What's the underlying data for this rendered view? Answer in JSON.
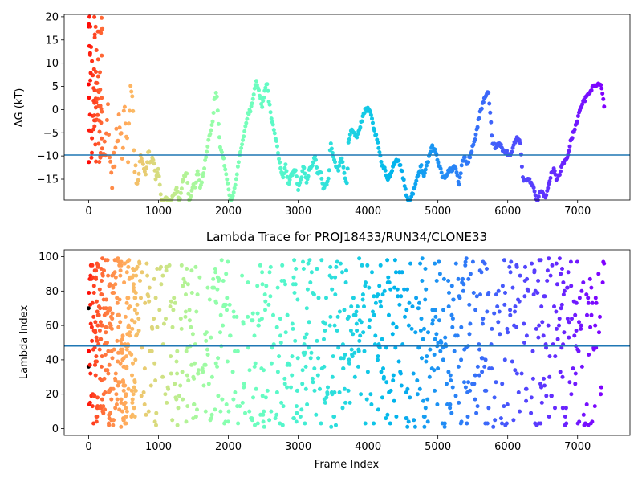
{
  "chart_data": [
    {
      "type": "scatter",
      "title": "",
      "xlabel": "",
      "ylabel": "ΔG (kT)",
      "xlim": [
        -350,
        7750
      ],
      "ylim": [
        -19.5,
        20.5
      ],
      "xticks": [
        0,
        1000,
        2000,
        3000,
        4000,
        5000,
        6000,
        7000
      ],
      "yticks": [
        -15,
        -10,
        -5,
        0,
        5,
        10,
        15,
        20
      ],
      "hline": -9.8,
      "hline_color": "#1f77b4",
      "colormap": "rainbow, reversed by frame index",
      "marker_size": 2.5,
      "series": [
        {
          "values_by_frame": [
            [
              0,
              20
            ],
            [
              20,
              17
            ],
            [
              40,
              10
            ],
            [
              60,
              5
            ],
            [
              80,
              0
            ],
            [
              100,
              -6
            ],
            [
              120,
              8
            ],
            [
              140,
              3
            ],
            [
              160,
              -5
            ],
            [
              180,
              2
            ],
            [
              200,
              -13
            ],
            [
              240,
              -8
            ],
            [
              280,
              0
            ],
            [
              320,
              -17
            ],
            [
              360,
              -12
            ],
            [
              400,
              -6
            ],
            [
              440,
              -3
            ],
            [
              480,
              -8
            ],
            [
              520,
              1
            ],
            [
              560,
              -10
            ],
            [
              600,
              5
            ],
            [
              620,
              7.5
            ],
            [
              640,
              -2
            ],
            [
              660,
              -12
            ],
            [
              700,
              -17
            ],
            [
              740,
              -10
            ],
            [
              780,
              -12
            ],
            [
              820,
              -14
            ],
            [
              860,
              -8
            ],
            [
              880,
              -12
            ],
            [
              920,
              -10
            ],
            [
              960,
              -15
            ],
            [
              1000,
              -13
            ],
            [
              1040,
              -20
            ],
            [
              1100,
              -19
            ],
            [
              1160,
              -20
            ],
            [
              1200,
              -19
            ],
            [
              1260,
              -17
            ],
            [
              1300,
              -20
            ],
            [
              1340,
              -16
            ],
            [
              1380,
              -14
            ],
            [
              1400,
              -13
            ],
            [
              1440,
              -20
            ],
            [
              1500,
              -16
            ],
            [
              1520,
              -17
            ],
            [
              1560,
              -13
            ],
            [
              1600,
              -17
            ],
            [
              1660,
              -12
            ],
            [
              1700,
              -8
            ],
            [
              1740,
              -5
            ],
            [
              1780,
              -2
            ],
            [
              1800,
              2
            ],
            [
              1830,
              4
            ],
            [
              1860,
              -3
            ],
            [
              1880,
              -8
            ],
            [
              1920,
              -10
            ],
            [
              1960,
              -13
            ],
            [
              2000,
              -17
            ],
            [
              2040,
              -20
            ],
            [
              2080,
              -18
            ],
            [
              2120,
              -14
            ],
            [
              2160,
              -10
            ],
            [
              2200,
              -7
            ],
            [
              2240,
              -4
            ],
            [
              2280,
              -1
            ],
            [
              2320,
              0
            ],
            [
              2360,
              3
            ],
            [
              2400,
              6
            ],
            [
              2440,
              4
            ],
            [
              2480,
              0
            ],
            [
              2520,
              4
            ],
            [
              2560,
              6
            ],
            [
              2580,
              2
            ],
            [
              2620,
              -2
            ],
            [
              2660,
              -5
            ],
            [
              2700,
              -8
            ],
            [
              2740,
              -12
            ],
            [
              2780,
              -15
            ],
            [
              2820,
              -12
            ],
            [
              2860,
              -16
            ],
            [
              2900,
              -14
            ],
            [
              2960,
              -13
            ],
            [
              3000,
              -17
            ],
            [
              3040,
              -15
            ],
            [
              3080,
              -12
            ],
            [
              3120,
              -16
            ],
            [
              3160,
              -13
            ],
            [
              3200,
              -12
            ],
            [
              3240,
              -10
            ],
            [
              3280,
              -14
            ],
            [
              3320,
              -13
            ],
            [
              3360,
              -17
            ],
            [
              3400,
              -16
            ],
            [
              3440,
              -15
            ],
            [
              3460,
              -7
            ],
            [
              3500,
              -10
            ],
            [
              3540,
              -12
            ],
            [
              3580,
              -13
            ],
            [
              3620,
              -10
            ],
            [
              3660,
              -14
            ],
            [
              3700,
              -16
            ],
            [
              3720,
              -7
            ],
            [
              3760,
              -4
            ],
            [
              3800,
              -5
            ],
            [
              3840,
              -6
            ],
            [
              3880,
              -4
            ],
            [
              3920,
              -2
            ],
            [
              3960,
              0
            ],
            [
              4000,
              0
            ],
            [
              4040,
              -1
            ],
            [
              4080,
              -4
            ],
            [
              4120,
              -6
            ],
            [
              4160,
              -9
            ],
            [
              4200,
              -12
            ],
            [
              4240,
              -13
            ],
            [
              4280,
              -15
            ],
            [
              4320,
              -14
            ],
            [
              4360,
              -12
            ],
            [
              4400,
              -11
            ],
            [
              4440,
              -11
            ],
            [
              4480,
              -13
            ],
            [
              4520,
              -16
            ],
            [
              4560,
              -19
            ],
            [
              4600,
              -20
            ],
            [
              4640,
              -18
            ],
            [
              4680,
              -16
            ],
            [
              4720,
              -14
            ],
            [
              4760,
              -12
            ],
            [
              4800,
              -14
            ],
            [
              4840,
              -12
            ],
            [
              4880,
              -10
            ],
            [
              4920,
              -8
            ],
            [
              4960,
              -9
            ],
            [
              5000,
              -11
            ],
            [
              5040,
              -13
            ],
            [
              5080,
              -15
            ],
            [
              5120,
              -14
            ],
            [
              5160,
              -13
            ],
            [
              5200,
              -13
            ],
            [
              5240,
              -12
            ],
            [
              5280,
              -14
            ],
            [
              5300,
              -17
            ],
            [
              5340,
              -12
            ],
            [
              5380,
              -10
            ],
            [
              5420,
              -12
            ],
            [
              5440,
              -11
            ],
            [
              5480,
              -9
            ],
            [
              5520,
              -7
            ],
            [
              5560,
              -4
            ],
            [
              5600,
              -1
            ],
            [
              5640,
              1
            ],
            [
              5680,
              3
            ],
            [
              5720,
              4
            ],
            [
              5760,
              -3
            ],
            [
              5780,
              -7
            ],
            [
              5820,
              -8
            ],
            [
              5860,
              -7.5
            ],
            [
              5900,
              -7.5
            ],
            [
              5940,
              -9
            ],
            [
              5980,
              -9
            ],
            [
              6020,
              -10
            ],
            [
              6060,
              -9
            ],
            [
              6100,
              -7
            ],
            [
              6140,
              -6
            ],
            [
              6180,
              -7
            ],
            [
              6200,
              -12
            ],
            [
              6220,
              -15
            ],
            [
              6260,
              -15
            ],
            [
              6300,
              -15
            ],
            [
              6340,
              -16
            ],
            [
              6380,
              -17
            ],
            [
              6420,
              -20
            ],
            [
              6460,
              -18
            ],
            [
              6500,
              -18
            ],
            [
              6540,
              -19
            ],
            [
              6580,
              -17
            ],
            [
              6620,
              -14
            ],
            [
              6660,
              -13
            ],
            [
              6700,
              -15
            ],
            [
              6740,
              -14
            ],
            [
              6780,
              -12
            ],
            [
              6820,
              -11
            ],
            [
              6860,
              -10
            ],
            [
              6900,
              -7
            ],
            [
              6940,
              -5
            ],
            [
              6980,
              -3
            ],
            [
              7020,
              -1
            ],
            [
              7060,
              1
            ],
            [
              7100,
              2
            ],
            [
              7140,
              3
            ],
            [
              7180,
              4
            ],
            [
              7220,
              5
            ],
            [
              7260,
              5
            ],
            [
              7300,
              6
            ],
            [
              7340,
              5
            ],
            [
              7380,
              1
            ]
          ]
        }
      ]
    },
    {
      "type": "scatter",
      "title": "Lambda Trace for PROJ18433/RUN34/CLONE33",
      "xlabel": "Frame Index",
      "ylabel": "Lambda Index",
      "xlim": [
        -350,
        7750
      ],
      "ylim": [
        -4,
        104
      ],
      "xticks": [
        0,
        1000,
        2000,
        3000,
        4000,
        5000,
        6000,
        7000
      ],
      "yticks": [
        0,
        20,
        40,
        60,
        80,
        100
      ],
      "hline": 48,
      "hline_color": "#1f77b4",
      "colormap": "rainbow, reversed by frame index",
      "marker_size": 2.5,
      "frame_range": [
        0,
        7380
      ],
      "lambda_range": [
        1,
        99
      ]
    }
  ]
}
